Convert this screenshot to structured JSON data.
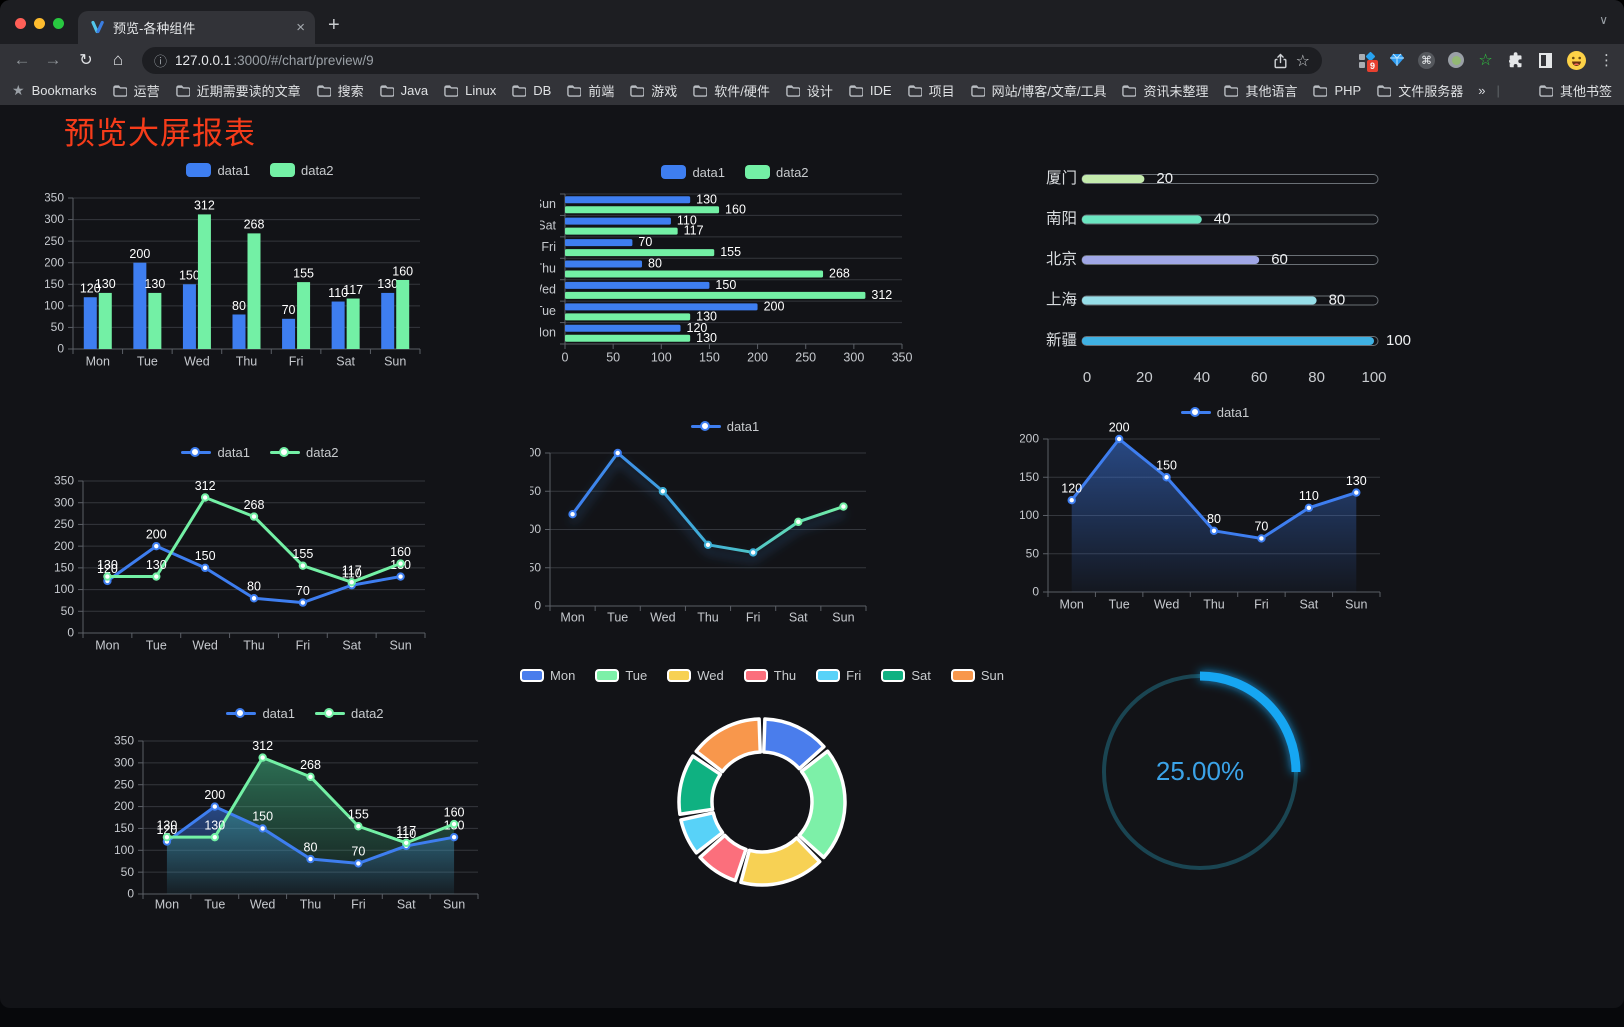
{
  "browser": {
    "tab": {
      "title": "预览-各种组件"
    },
    "url": {
      "host": "127.0.0.1",
      "rest": ":3000/#/chart/preview/9"
    },
    "glyphs": {
      "close": "×",
      "new_tab": "+",
      "chevron": "∨",
      "back": "←",
      "forward": "→",
      "reload": "↻",
      "home": "⌂",
      "info": "ⓘ",
      "star": "☆",
      "bookmarks_star": "★",
      "menu": "⋮",
      "overflow": "»",
      "command": "⌘",
      "green_star": "☆"
    },
    "extensions": [
      {
        "name": "grid-extension",
        "badge": "9"
      },
      {
        "name": "gem-extension"
      },
      {
        "name": "command-circle-extension"
      },
      {
        "name": "ring-extension"
      },
      {
        "name": "green-star-extension"
      },
      {
        "name": "puzzle-extensions-menu"
      },
      {
        "name": "contrast-extension"
      }
    ],
    "bookmarks": {
      "manager_label": "Bookmarks",
      "folders": [
        "运营",
        "近期需要读的文章",
        "搜索",
        "Java",
        "Linux",
        "DB",
        "前端",
        "游戏",
        "软件/硬件",
        "设计",
        "IDE",
        "项目",
        "网站/博客/文章/工具",
        "资讯未整理",
        "其他语言",
        "PHP",
        "文件服务器"
      ],
      "overflow_chevron": "»",
      "other_bookmarks": "其他书签"
    }
  },
  "page": {
    "title": "预览大屏报表"
  },
  "chart_data": [
    {
      "id": "c1",
      "type": "bar",
      "title": "",
      "categories": [
        "Mon",
        "Tue",
        "Wed",
        "Thu",
        "Fri",
        "Sat",
        "Sun"
      ],
      "series": [
        {
          "name": "data1",
          "color": "#3e7ef0",
          "values": [
            120,
            200,
            150,
            80,
            70,
            110,
            130
          ]
        },
        {
          "name": "data2",
          "color": "#73f0a5",
          "values": [
            130,
            130,
            312,
            268,
            155,
            117,
            160
          ]
        }
      ],
      "ylim": [
        0,
        350
      ],
      "ytick": 50,
      "grid": true,
      "legend_position": "top",
      "labels": true
    },
    {
      "id": "c2",
      "type": "bar-horizontal",
      "title": "",
      "categories": [
        "Mon",
        "Tue",
        "Wed",
        "Thu",
        "Fri",
        "Sat",
        "Sun"
      ],
      "series": [
        {
          "name": "data1",
          "color": "#3e7ef0",
          "values": [
            120,
            200,
            150,
            80,
            70,
            110,
            130
          ]
        },
        {
          "name": "data2",
          "color": "#73f0a5",
          "values": [
            130,
            130,
            312,
            268,
            155,
            117,
            160
          ]
        }
      ],
      "xlim": [
        0,
        350
      ],
      "xtick": 50,
      "grid": true,
      "legend_position": "top",
      "labels": true
    },
    {
      "id": "c3",
      "type": "progress-bars",
      "title": "",
      "categories": [
        "厦门",
        "南阳",
        "北京",
        "上海",
        "新疆"
      ],
      "values": [
        20,
        40,
        60,
        80,
        100
      ],
      "colors": [
        "#c4ebad",
        "#6be6c1",
        "#a0a7e6",
        "#96dee8",
        "#3fb1e3"
      ],
      "xlim": [
        0,
        100
      ],
      "xtick": 20
    },
    {
      "id": "c4",
      "type": "line",
      "title": "",
      "categories": [
        "Mon",
        "Tue",
        "Wed",
        "Thu",
        "Fri",
        "Sat",
        "Sun"
      ],
      "series": [
        {
          "name": "data1",
          "color": "#3e7ef0",
          "values": [
            120,
            200,
            150,
            80,
            70,
            110,
            130
          ]
        },
        {
          "name": "data2",
          "color": "#73f0a5",
          "values": [
            130,
            130,
            312,
            268,
            155,
            117,
            160
          ]
        }
      ],
      "ylim": [
        0,
        350
      ],
      "ytick": 50,
      "grid": true,
      "legend_position": "top",
      "labels": true
    },
    {
      "id": "c5",
      "type": "line",
      "title": "",
      "categories": [
        "Mon",
        "Tue",
        "Wed",
        "Thu",
        "Fri",
        "Sat",
        "Sun"
      ],
      "series": [
        {
          "name": "data1",
          "color": "#3e7ef0",
          "gradient": [
            "#3e7ef0",
            "#3fb0d8",
            "#73f0a5"
          ],
          "glow": true,
          "values": [
            120,
            200,
            150,
            80,
            70,
            110,
            130
          ]
        }
      ],
      "ylim": [
        0,
        200
      ],
      "ytick": 50,
      "grid": true,
      "legend_position": "top",
      "labels": false
    },
    {
      "id": "c6",
      "type": "line",
      "title": "",
      "categories": [
        "Mon",
        "Tue",
        "Wed",
        "Thu",
        "Fri",
        "Sat",
        "Sun"
      ],
      "series": [
        {
          "name": "data1",
          "color": "#3e7ef0",
          "area": true,
          "values": [
            120,
            200,
            150,
            80,
            70,
            110,
            130
          ]
        }
      ],
      "ylim": [
        0,
        200
      ],
      "ytick": 50,
      "grid": true,
      "legend_position": "top",
      "labels": true
    },
    {
      "id": "c7",
      "type": "line",
      "title": "",
      "categories": [
        "Mon",
        "Tue",
        "Wed",
        "Thu",
        "Fri",
        "Sat",
        "Sun"
      ],
      "series": [
        {
          "name": "data1",
          "color": "#3e7ef0",
          "area": true,
          "values": [
            120,
            200,
            150,
            80,
            70,
            110,
            130
          ]
        },
        {
          "name": "data2",
          "color": "#73f0a5",
          "area": true,
          "area_color": "#46c98f",
          "values": [
            130,
            130,
            312,
            268,
            155,
            117,
            160
          ]
        }
      ],
      "ylim": [
        0,
        350
      ],
      "ytick": 50,
      "grid": true,
      "legend_position": "top",
      "labels": true
    },
    {
      "id": "c8",
      "type": "pie",
      "title": "",
      "categories": [
        "Mon",
        "Tue",
        "Wed",
        "Thu",
        "Fri",
        "Sat",
        "Sun"
      ],
      "values": [
        120,
        200,
        150,
        80,
        70,
        110,
        130
      ],
      "colors": [
        "#4a7dec",
        "#7df0a8",
        "#f7d154",
        "#fb6f7c",
        "#58d2f8",
        "#0fb181",
        "#f8974c"
      ],
      "legend_position": "top",
      "donut": true
    },
    {
      "id": "c9",
      "type": "gauge",
      "title": "",
      "value_label": "25.00%",
      "percent": 25,
      "arc_color": "#16a6f2",
      "track_color": "#1a4552",
      "text_color": "#3ba3e8"
    }
  ]
}
